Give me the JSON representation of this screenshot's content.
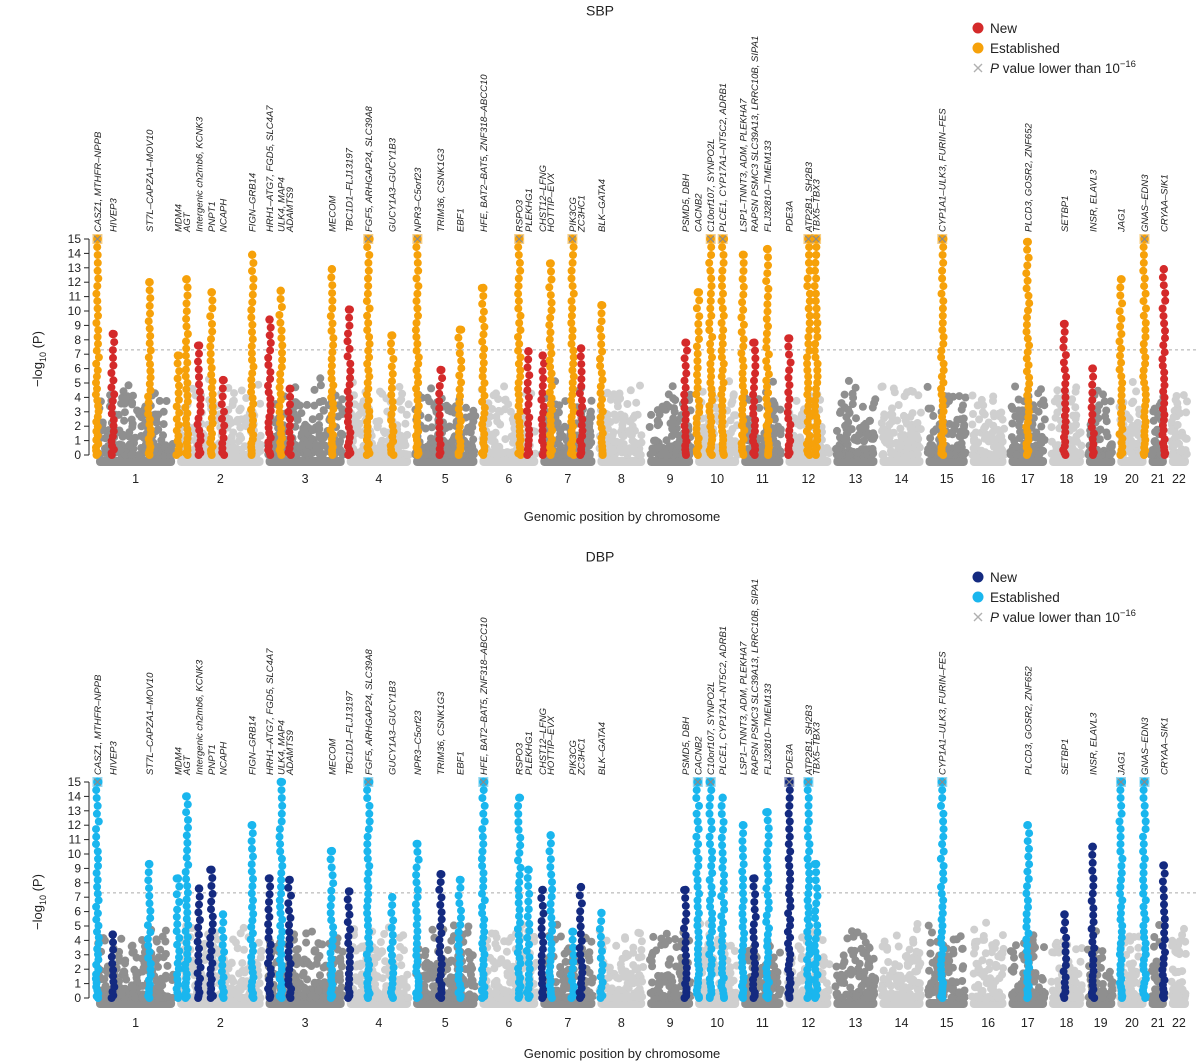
{
  "chart_data": [
    {
      "type": "scatter",
      "subtype": "manhattan",
      "title": "SBP",
      "xlabel": "Genomic position by chromosome",
      "ylabel": "−log10 (P)",
      "ylabel_parts": {
        "prefix": "−log",
        "sub": "10",
        "suffix": " (P)"
      },
      "ylim": [
        0,
        15
      ],
      "yticks": [
        0,
        1,
        2,
        3,
        4,
        5,
        6,
        7,
        8,
        9,
        10,
        11,
        12,
        13,
        14,
        15
      ],
      "significance_threshold": 7.3,
      "chromosomes": [
        "1",
        "2",
        "3",
        "4",
        "5",
        "6",
        "7",
        "8",
        "9",
        "10",
        "11",
        "12",
        "13",
        "14",
        "15",
        "16",
        "17",
        "18",
        "19",
        "20",
        "21",
        "22"
      ],
      "legend": [
        {
          "label": "New",
          "color": "#d42a2a",
          "marker": "dot"
        },
        {
          "label": "Established",
          "color": "#f6a10a",
          "marker": "dot"
        },
        {
          "label": "P value lower than 10",
          "sup": "−16",
          "color": "#b0b0b0",
          "marker": "cross"
        }
      ],
      "base_colors": [
        "#8f8f8f",
        "#cfcfcf"
      ],
      "loci": [
        {
          "label": "CASZ1, MTHFR–NPPB",
          "chr": 1,
          "pos": 0.03,
          "peak": 15,
          "cls": "established",
          "capped": true
        },
        {
          "label": "HIVEP3",
          "chr": 1,
          "pos": 0.22,
          "peak": 8.4,
          "cls": "new"
        },
        {
          "label": "ST7L–CAPZA1–MOV10",
          "chr": 1,
          "pos": 0.67,
          "peak": 12.0,
          "cls": "established"
        },
        {
          "label": "MDM4",
          "chr": 2,
          "pos": 0.02,
          "peak": 6.9,
          "cls": "established"
        },
        {
          "label": "AGT",
          "chr": 2,
          "pos": 0.12,
          "peak": 12.2,
          "cls": "established"
        },
        {
          "label": "Intergenic ch2mb6, KCNK3",
          "chr": 2,
          "pos": 0.26,
          "peak": 7.6,
          "cls": "new"
        },
        {
          "label": "PNPT1",
          "chr": 2,
          "pos": 0.4,
          "peak": 11.3,
          "cls": "established"
        },
        {
          "label": "NCAPH",
          "chr": 2,
          "pos": 0.53,
          "peak": 5.2,
          "cls": "new"
        },
        {
          "label": "FIGN–GRB14",
          "chr": 2,
          "pos": 0.86,
          "peak": 13.9,
          "cls": "established"
        },
        {
          "label": "HRH1–ATG7, FGD5, SLC4A7",
          "chr": 3,
          "pos": 0.06,
          "peak": 9.4,
          "cls": "new"
        },
        {
          "label": "ULK4, MAP4",
          "chr": 3,
          "pos": 0.2,
          "peak": 11.4,
          "cls": "established"
        },
        {
          "label": "ADAMTS9",
          "chr": 3,
          "pos": 0.31,
          "peak": 4.6,
          "cls": "new"
        },
        {
          "label": "MECOM",
          "chr": 3,
          "pos": 0.83,
          "peak": 12.9,
          "cls": "established"
        },
        {
          "label": "TBC1D1–FLJ13197",
          "chr": 4,
          "pos": 0.05,
          "peak": 10.1,
          "cls": "new"
        },
        {
          "label": "FGF5, ARHGAP24, SLC39A8",
          "chr": 4,
          "pos": 0.34,
          "peak": 15,
          "cls": "established",
          "capped": true
        },
        {
          "label": "GUCY1A3–GUCY1B3",
          "chr": 4,
          "pos": 0.7,
          "peak": 8.3,
          "cls": "established"
        },
        {
          "label": "NPR3–C5orf23",
          "chr": 5,
          "pos": 0.08,
          "peak": 15,
          "cls": "established",
          "capped": true
        },
        {
          "label": "TRIM36, CSNK1G3",
          "chr": 5,
          "pos": 0.43,
          "peak": 5.9,
          "cls": "new"
        },
        {
          "label": "EBF1",
          "chr": 5,
          "pos": 0.72,
          "peak": 8.7,
          "cls": "established"
        },
        {
          "label": "HFE, BAT2–BAT5, ZNF318–ABCC10",
          "chr": 6,
          "pos": 0.08,
          "peak": 11.6,
          "cls": "established"
        },
        {
          "label": "RSPO3",
          "chr": 6,
          "pos": 0.67,
          "peak": 15,
          "cls": "established",
          "capped": true
        },
        {
          "label": "PLEKHG1",
          "chr": 6,
          "pos": 0.82,
          "peak": 7.2,
          "cls": "new"
        },
        {
          "label": "CHST12–LFNG",
          "chr": 7,
          "pos": 0.06,
          "peak": 6.9,
          "cls": "new"
        },
        {
          "label": "HOTTIP–EVX",
          "chr": 7,
          "pos": 0.2,
          "peak": 13.3,
          "cls": "established"
        },
        {
          "label": "PIK3CG",
          "chr": 7,
          "pos": 0.58,
          "peak": 15,
          "cls": "established",
          "capped": true
        },
        {
          "label": "ZC3HC1",
          "chr": 7,
          "pos": 0.73,
          "peak": 7.4,
          "cls": "new"
        },
        {
          "label": "BLK–GATA4",
          "chr": 8,
          "pos": 0.1,
          "peak": 10.4,
          "cls": "established"
        },
        {
          "label": "PSMD5, DBH",
          "chr": 9,
          "pos": 0.82,
          "peak": 7.8,
          "cls": "new"
        },
        {
          "label": "CACNB2",
          "chr": 10,
          "pos": 0.08,
          "peak": 11.3,
          "cls": "established"
        },
        {
          "label": "C10orf107, SYNPO2L",
          "chr": 10,
          "pos": 0.36,
          "peak": 15,
          "cls": "established",
          "capped": true
        },
        {
          "label": "PLCE1, CYP17A1–NT5C2, ADRB1",
          "chr": 10,
          "pos": 0.62,
          "peak": 15,
          "cls": "established",
          "capped": true
        },
        {
          "label": "LSP1–TNNT3, ADM, PLEKHA7",
          "chr": 11,
          "pos": 0.06,
          "peak": 13.9,
          "cls": "established"
        },
        {
          "label": "RAPSN PSMC3 SLC39A13, LRRC10B, SIPA1",
          "chr": 11,
          "pos": 0.32,
          "peak": 7.8,
          "cls": "new"
        },
        {
          "label": "FLJ32810–TMEM133",
          "chr": 11,
          "pos": 0.62,
          "peak": 14.3,
          "cls": "established"
        },
        {
          "label": "PDE3A",
          "chr": 12,
          "pos": 0.1,
          "peak": 8.1,
          "cls": "new"
        },
        {
          "label": "ATP2B1, SH2B3",
          "chr": 12,
          "pos": 0.5,
          "peak": 15,
          "cls": "established",
          "capped": true
        },
        {
          "label": "TBX5–TBX3",
          "chr": 12,
          "pos": 0.66,
          "peak": 15,
          "cls": "established",
          "capped": true
        },
        {
          "label": "CYP1A1–ULK3, FURIN–FES",
          "chr": 15,
          "pos": 0.4,
          "peak": 15,
          "cls": "established",
          "capped": true
        },
        {
          "label": "PLCD3, GOSR2, ZNF652",
          "chr": 17,
          "pos": 0.5,
          "peak": 14.8,
          "cls": "established"
        },
        {
          "label": "SETBP1",
          "chr": 18,
          "pos": 0.45,
          "peak": 9.1,
          "cls": "new"
        },
        {
          "label": "INSR, ELAVL3",
          "chr": 19,
          "pos": 0.25,
          "peak": 6.0,
          "cls": "new"
        },
        {
          "label": "JAG1",
          "chr": 20,
          "pos": 0.15,
          "peak": 12.2,
          "cls": "established"
        },
        {
          "label": "GNAS–EDN3",
          "chr": 20,
          "pos": 0.9,
          "peak": 15,
          "cls": "established",
          "capped": true
        },
        {
          "label": "CRYAA–SIK1",
          "chr": 21,
          "pos": 0.8,
          "peak": 12.9,
          "cls": "new"
        }
      ]
    },
    {
      "type": "scatter",
      "subtype": "manhattan",
      "title": "DBP",
      "xlabel": "Genomic position by chromosome",
      "ylabel": "−log10 (P)",
      "ylabel_parts": {
        "prefix": "−log",
        "sub": "10",
        "suffix": " (P)"
      },
      "ylim": [
        0,
        15
      ],
      "yticks": [
        0,
        1,
        2,
        3,
        4,
        5,
        6,
        7,
        8,
        9,
        10,
        11,
        12,
        13,
        14,
        15
      ],
      "significance_threshold": 7.3,
      "chromosomes": [
        "1",
        "2",
        "3",
        "4",
        "5",
        "6",
        "7",
        "8",
        "9",
        "10",
        "11",
        "12",
        "13",
        "14",
        "15",
        "16",
        "17",
        "18",
        "19",
        "20",
        "21",
        "22"
      ],
      "legend": [
        {
          "label": "New",
          "color": "#142a80",
          "marker": "dot"
        },
        {
          "label": "Established",
          "color": "#1ab6ee",
          "marker": "dot"
        },
        {
          "label": "P value lower than 10",
          "sup": "−16",
          "color": "#b0b0b0",
          "marker": "cross"
        }
      ],
      "base_colors": [
        "#8f8f8f",
        "#cfcfcf"
      ],
      "loci": [
        {
          "label": "CASZ1, MTHFR–NPPB",
          "chr": 1,
          "pos": 0.03,
          "peak": 15,
          "cls": "established",
          "capped": true
        },
        {
          "label": "HIVEP3",
          "chr": 1,
          "pos": 0.22,
          "peak": 4.4,
          "cls": "new"
        },
        {
          "label": "ST7L–CAPZA1–MOV10",
          "chr": 1,
          "pos": 0.67,
          "peak": 9.3,
          "cls": "established"
        },
        {
          "label": "MDM4",
          "chr": 2,
          "pos": 0.02,
          "peak": 8.3,
          "cls": "established"
        },
        {
          "label": "AGT",
          "chr": 2,
          "pos": 0.12,
          "peak": 14.0,
          "cls": "established"
        },
        {
          "label": "Intergenic ch2mb6, KCNK3",
          "chr": 2,
          "pos": 0.26,
          "peak": 7.6,
          "cls": "new"
        },
        {
          "label": "PNPT1",
          "chr": 2,
          "pos": 0.4,
          "peak": 8.9,
          "cls": "new"
        },
        {
          "label": "NCAPH",
          "chr": 2,
          "pos": 0.53,
          "peak": 5.8,
          "cls": "established"
        },
        {
          "label": "FIGN–GRB14",
          "chr": 2,
          "pos": 0.86,
          "peak": 12.0,
          "cls": "established"
        },
        {
          "label": "HRH1–ATG7, FGD5, SLC4A7",
          "chr": 3,
          "pos": 0.06,
          "peak": 8.3,
          "cls": "new"
        },
        {
          "label": "ULK4, MAP4",
          "chr": 3,
          "pos": 0.2,
          "peak": 15,
          "cls": "established"
        },
        {
          "label": "ADAMTS9",
          "chr": 3,
          "pos": 0.31,
          "peak": 8.2,
          "cls": "new"
        },
        {
          "label": "MECOM",
          "chr": 3,
          "pos": 0.83,
          "peak": 10.2,
          "cls": "established"
        },
        {
          "label": "TBC1D1–FLJ13197",
          "chr": 4,
          "pos": 0.05,
          "peak": 7.4,
          "cls": "new"
        },
        {
          "label": "FGF5, ARHGAP24, SLC39A8",
          "chr": 4,
          "pos": 0.34,
          "peak": 15,
          "cls": "established",
          "capped": true
        },
        {
          "label": "GUCY1A3–GUCY1B3",
          "chr": 4,
          "pos": 0.7,
          "peak": 7.0,
          "cls": "established"
        },
        {
          "label": "NPR3–C5orf23",
          "chr": 5,
          "pos": 0.08,
          "peak": 10.7,
          "cls": "established"
        },
        {
          "label": "TRIM36, CSNK1G3",
          "chr": 5,
          "pos": 0.43,
          "peak": 8.6,
          "cls": "new"
        },
        {
          "label": "EBF1",
          "chr": 5,
          "pos": 0.72,
          "peak": 8.2,
          "cls": "established"
        },
        {
          "label": "HFE, BAT2–BAT5, ZNF318–ABCC10",
          "chr": 6,
          "pos": 0.08,
          "peak": 15,
          "cls": "established",
          "capped": true
        },
        {
          "label": "RSPO3",
          "chr": 6,
          "pos": 0.67,
          "peak": 13.9,
          "cls": "established"
        },
        {
          "label": "PLEKHG1",
          "chr": 6,
          "pos": 0.82,
          "peak": 8.9,
          "cls": "established"
        },
        {
          "label": "CHST12–LFNG",
          "chr": 7,
          "pos": 0.06,
          "peak": 7.5,
          "cls": "new"
        },
        {
          "label": "HOTTIP–EVX",
          "chr": 7,
          "pos": 0.2,
          "peak": 11.3,
          "cls": "established"
        },
        {
          "label": "PIK3CG",
          "chr": 7,
          "pos": 0.58,
          "peak": 4.6,
          "cls": "established"
        },
        {
          "label": "ZC3HC1",
          "chr": 7,
          "pos": 0.73,
          "peak": 7.7,
          "cls": "new"
        },
        {
          "label": "BLK–GATA4",
          "chr": 8,
          "pos": 0.1,
          "peak": 5.9,
          "cls": "established"
        },
        {
          "label": "PSMD5, DBH",
          "chr": 9,
          "pos": 0.82,
          "peak": 7.5,
          "cls": "new"
        },
        {
          "label": "CACNB2",
          "chr": 10,
          "pos": 0.08,
          "peak": 15,
          "cls": "established",
          "capped": true
        },
        {
          "label": "C10orf107, SYNPO2L",
          "chr": 10,
          "pos": 0.36,
          "peak": 15,
          "cls": "established",
          "capped": true
        },
        {
          "label": "PLCE1, CYP17A1–NT5C2, ADRB1",
          "chr": 10,
          "pos": 0.62,
          "peak": 13.9,
          "cls": "established"
        },
        {
          "label": "LSP1–TNNT3, ADM, PLEKHA7",
          "chr": 11,
          "pos": 0.06,
          "peak": 12.0,
          "cls": "established"
        },
        {
          "label": "RAPSN PSMC3 SLC39A13, LRRC10B, SIPA1",
          "chr": 11,
          "pos": 0.32,
          "peak": 8.3,
          "cls": "new"
        },
        {
          "label": "FLJ32810–TMEM133",
          "chr": 11,
          "pos": 0.62,
          "peak": 12.9,
          "cls": "established"
        },
        {
          "label": "PDE3A",
          "chr": 12,
          "pos": 0.1,
          "peak": 15,
          "cls": "new",
          "capped": true
        },
        {
          "label": "ATP2B1, SH2B3",
          "chr": 12,
          "pos": 0.5,
          "peak": 15,
          "cls": "established",
          "capped": true
        },
        {
          "label": "TBX5–TBX3",
          "chr": 12,
          "pos": 0.66,
          "peak": 9.3,
          "cls": "established"
        },
        {
          "label": "CYP1A1–ULK3, FURIN–FES",
          "chr": 15,
          "pos": 0.4,
          "peak": 15,
          "cls": "established",
          "capped": true
        },
        {
          "label": "PLCD3, GOSR2, ZNF652",
          "chr": 17,
          "pos": 0.5,
          "peak": 12.0,
          "cls": "established"
        },
        {
          "label": "SETBP1",
          "chr": 18,
          "pos": 0.45,
          "peak": 5.8,
          "cls": "new"
        },
        {
          "label": "INSR, ELAVL3",
          "chr": 19,
          "pos": 0.25,
          "peak": 10.5,
          "cls": "new"
        },
        {
          "label": "JAG1",
          "chr": 20,
          "pos": 0.15,
          "peak": 15,
          "cls": "established",
          "capped": true
        },
        {
          "label": "GNAS–EDN3",
          "chr": 20,
          "pos": 0.9,
          "peak": 15,
          "cls": "established",
          "capped": true
        },
        {
          "label": "CRYAA–SIK1",
          "chr": 21,
          "pos": 0.8,
          "peak": 9.2,
          "cls": "new"
        }
      ]
    }
  ]
}
